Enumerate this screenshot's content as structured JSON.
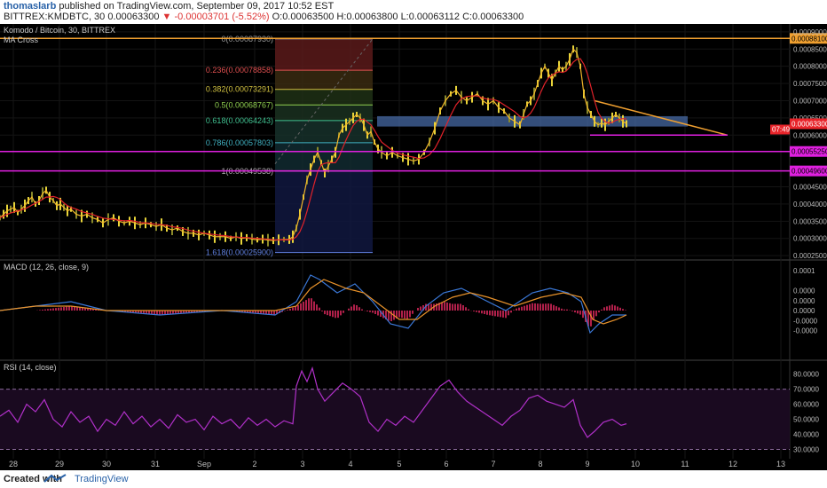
{
  "header": {
    "author": "thomaslarb",
    "published": "published on TradingView.com, September 09, 2017 10:52 EST",
    "symbol": "BITTREX:KMDBTC, 30",
    "last": "0.00063300",
    "change": "-0.00003701 (-5.52%)",
    "open": "O:0.00063500",
    "high": "H:0.00063800",
    "low": "L:0.00063112",
    "close": "C:0.00063300"
  },
  "footer": {
    "created_with": "Created with",
    "brand": "TradingView"
  },
  "colors": {
    "candle_up": "#e8d53a",
    "candle_down": "#8a8a2a",
    "ma_fast": "#f0b52a",
    "ma_slow": "#e0222a",
    "macd": "#3a78d8",
    "signal": "#e8922a",
    "hist": "#b0204a",
    "rsi": "#b030c8",
    "fib_line": "#6a6a6a",
    "magenta": "#e020e0",
    "orange": "#f0a030",
    "zone": "#4a6fae",
    "last_bg": "#e8242a"
  },
  "chart_data": [
    {
      "type": "line",
      "title": "Komodo / Bitcoin, 30, BITTREX",
      "indicator": "MA Cross",
      "x_ticks": [
        "28",
        "29",
        "30",
        "31",
        "Sep",
        "2",
        "3",
        "4",
        "5",
        "6",
        "7",
        "8",
        "9",
        "10",
        "11",
        "12",
        "13"
      ],
      "y_ticks": [
        "0.00090000",
        "0.00085000",
        "0.00080000",
        "0.00075000",
        "0.00070000",
        "0.00065000",
        "0.00060000",
        "0.00045000",
        "0.00040000",
        "0.00035000",
        "0.00030000",
        "0.00025000"
      ],
      "ylim": [
        0.00024,
        0.00091
      ],
      "price_series": [
        [
          0,
          0.00036
        ],
        [
          4,
          0.00037
        ],
        [
          8,
          0.00038
        ],
        [
          12,
          0.000385
        ],
        [
          16,
          0.00039
        ],
        [
          20,
          0.000375
        ],
        [
          24,
          0.000385
        ],
        [
          28,
          0.000395
        ],
        [
          32,
          0.00041
        ],
        [
          36,
          0.00042
        ],
        [
          40,
          0.0004
        ],
        [
          44,
          0.00041
        ],
        [
          48,
          0.00043
        ],
        [
          52,
          0.00044
        ],
        [
          56,
          0.00042
        ],
        [
          60,
          0.00041
        ],
        [
          64,
          0.000395
        ],
        [
          68,
          0.0004
        ],
        [
          72,
          0.00039
        ],
        [
          76,
          0.00038
        ],
        [
          80,
          0.000385
        ],
        [
          86,
          0.00037
        ],
        [
          92,
          0.000365
        ],
        [
          98,
          0.00037
        ],
        [
          104,
          0.00036
        ],
        [
          110,
          0.000355
        ],
        [
          116,
          0.000345
        ],
        [
          122,
          0.000355
        ],
        [
          128,
          0.00036
        ],
        [
          134,
          0.00035
        ],
        [
          140,
          0.000345
        ],
        [
          146,
          0.00035
        ],
        [
          152,
          0.000345
        ],
        [
          158,
          0.00034
        ],
        [
          164,
          0.000345
        ],
        [
          170,
          0.00034
        ],
        [
          176,
          0.000335
        ],
        [
          182,
          0.00034
        ],
        [
          188,
          0.00033
        ],
        [
          194,
          0.000325
        ],
        [
          200,
          0.00033
        ],
        [
          206,
          0.00032
        ],
        [
          212,
          0.000315
        ],
        [
          218,
          0.000315
        ],
        [
          224,
          0.00031
        ],
        [
          230,
          0.000315
        ],
        [
          236,
          0.00031
        ],
        [
          242,
          0.000305
        ],
        [
          248,
          0.000305
        ],
        [
          254,
          0.000305
        ],
        [
          260,
          0.0003
        ],
        [
          266,
          0.000305
        ],
        [
          272,
          0.0003
        ],
        [
          278,
          0.000302
        ],
        [
          284,
          0.000298
        ],
        [
          290,
          0.000296
        ],
        [
          296,
          0.000298
        ],
        [
          302,
          0.000295
        ],
        [
          308,
          0.000294
        ],
        [
          314,
          0.000296
        ],
        [
          320,
          0.000297
        ],
        [
          326,
          0.000297
        ],
        [
          330,
          0.000305
        ],
        [
          334,
          0.00033
        ],
        [
          338,
          0.00037
        ],
        [
          342,
          0.00042
        ],
        [
          346,
          0.00047
        ],
        [
          350,
          0.0005
        ],
        [
          354,
          0.00053
        ],
        [
          358,
          0.00055
        ],
        [
          362,
          0.00052
        ],
        [
          366,
          0.00049
        ],
        [
          370,
          0.00051
        ],
        [
          374,
          0.00053
        ],
        [
          378,
          0.00055
        ],
        [
          382,
          0.0006
        ],
        [
          386,
          0.00062
        ],
        [
          390,
          0.00063
        ],
        [
          394,
          0.00064
        ],
        [
          398,
          0.00065
        ],
        [
          402,
          0.00066
        ],
        [
          406,
          0.00065
        ],
        [
          410,
          0.00063
        ],
        [
          414,
          0.0006
        ],
        [
          418,
          0.00061
        ],
        [
          422,
          0.00058
        ],
        [
          426,
          0.00056
        ],
        [
          430,
          0.00055
        ],
        [
          436,
          0.00054
        ],
        [
          442,
          0.00055
        ],
        [
          448,
          0.00054
        ],
        [
          454,
          0.000535
        ],
        [
          460,
          0.00053
        ],
        [
          466,
          0.000525
        ],
        [
          472,
          0.00053
        ],
        [
          478,
          0.00055
        ],
        [
          484,
          0.00058
        ],
        [
          490,
          0.00062
        ],
        [
          496,
          0.00067
        ],
        [
          502,
          0.0007
        ],
        [
          508,
          0.00072
        ],
        [
          514,
          0.00073
        ],
        [
          520,
          0.00071
        ],
        [
          526,
          0.0007
        ],
        [
          532,
          0.00071
        ],
        [
          538,
          0.00072
        ],
        [
          544,
          0.0007
        ],
        [
          550,
          0.00069
        ],
        [
          556,
          0.0007
        ],
        [
          562,
          0.00068
        ],
        [
          568,
          0.00067
        ],
        [
          574,
          0.00065
        ],
        [
          580,
          0.00064
        ],
        [
          586,
          0.00063
        ],
        [
          590,
          0.00066
        ],
        [
          594,
          0.00069
        ],
        [
          598,
          0.0007
        ],
        [
          602,
          0.00072
        ],
        [
          606,
          0.00075
        ],
        [
          610,
          0.00078
        ],
        [
          614,
          0.0008
        ],
        [
          618,
          0.00078
        ],
        [
          622,
          0.00076
        ],
        [
          626,
          0.00078
        ],
        [
          630,
          0.0008
        ],
        [
          634,
          0.00079
        ],
        [
          638,
          0.0008
        ],
        [
          642,
          0.00082
        ],
        [
          646,
          0.00085
        ],
        [
          650,
          0.00084
        ],
        [
          654,
          0.0008
        ],
        [
          658,
          0.00072
        ],
        [
          662,
          0.00068
        ],
        [
          666,
          0.00066
        ],
        [
          670,
          0.00064
        ],
        [
          674,
          0.00063
        ],
        [
          678,
          0.000635
        ],
        [
          682,
          0.00063
        ],
        [
          686,
          0.00064
        ],
        [
          690,
          0.00065
        ],
        [
          694,
          0.00066
        ],
        [
          698,
          0.00065
        ],
        [
          702,
          0.00064
        ],
        [
          706,
          0.000633
        ]
      ],
      "fib_levels": [
        {
          "label": "0(0.00087930)",
          "value": 0.0008793
        },
        {
          "label": "0.236(0.00078858)",
          "value": 0.00078858
        },
        {
          "label": "0.382(0.00073291)",
          "value": 0.00073291
        },
        {
          "label": "0.5(0.00068767)",
          "value": 0.00068767
        },
        {
          "label": "0.618(0.00064243)",
          "value": 0.00064243
        },
        {
          "label": "0.786(0.00057803)",
          "value": 0.00057803
        },
        {
          "label": "1(0.00049538)",
          "value": 0.00049538
        },
        {
          "label": "1.618(0.00025900)",
          "value": 0.000259
        }
      ],
      "horizontal_lines": [
        {
          "label": "0.00088100",
          "value": 0.000881,
          "color": "#f0a030"
        },
        {
          "label": "0.00055250",
          "value": 0.0005525,
          "color": "#e020e0"
        },
        {
          "label": "0.00049600",
          "value": 0.000496,
          "color": "#e020e0"
        }
      ],
      "last_price_label": "0.00063300",
      "countdown_label": "07:49"
    },
    {
      "type": "line",
      "title": "MACD (12, 26, close, 9)",
      "y_ticks": [
        "0.0001",
        "0.0000",
        "0.0000",
        "0.0000",
        "-0.0000",
        "-0.0000"
      ],
      "ylim": [
        -0.00011,
        0.00011
      ],
      "series": [
        {
          "name": "MACD",
          "values": [
            [
              0,
              0.0
            ],
            [
              40,
              1e-05
            ],
            [
              80,
              2e-05
            ],
            [
              120,
              0.0
            ],
            [
              180,
              -1e-05
            ],
            [
              250,
              0.0
            ],
            [
              310,
              -1e-05
            ],
            [
              334,
              2e-05
            ],
            [
              350,
              8e-05
            ],
            [
              360,
              7e-05
            ],
            [
              380,
              4e-05
            ],
            [
              400,
              6e-05
            ],
            [
              420,
              2e-05
            ],
            [
              440,
              -3e-05
            ],
            [
              460,
              -4e-05
            ],
            [
              480,
              1e-05
            ],
            [
              500,
              4e-05
            ],
            [
              520,
              5e-05
            ],
            [
              540,
              3e-05
            ],
            [
              570,
              0.0
            ],
            [
              600,
              4e-05
            ],
            [
              620,
              5e-05
            ],
            [
              640,
              4e-05
            ],
            [
              655,
              2e-05
            ],
            [
              665,
              -5e-05
            ],
            [
              675,
              -3e-05
            ],
            [
              690,
              -1e-05
            ],
            [
              706,
              -1e-05
            ]
          ]
        },
        {
          "name": "Signal",
          "values": [
            [
              0,
              0.0
            ],
            [
              40,
              1e-05
            ],
            [
              80,
              1e-05
            ],
            [
              120,
              0.0
            ],
            [
              180,
              0.0
            ],
            [
              250,
              0.0
            ],
            [
              310,
              0.0
            ],
            [
              334,
              1e-05
            ],
            [
              350,
              5e-05
            ],
            [
              365,
              7e-05
            ],
            [
              390,
              5e-05
            ],
            [
              410,
              4e-05
            ],
            [
              430,
              1e-05
            ],
            [
              450,
              -2e-05
            ],
            [
              470,
              -2e-05
            ],
            [
              490,
              1e-05
            ],
            [
              510,
              3e-05
            ],
            [
              530,
              4e-05
            ],
            [
              550,
              3e-05
            ],
            [
              580,
              1e-05
            ],
            [
              610,
              3e-05
            ],
            [
              635,
              4e-05
            ],
            [
              655,
              3e-05
            ],
            [
              668,
              -2e-05
            ],
            [
              680,
              -3e-05
            ],
            [
              695,
              -2e-05
            ],
            [
              706,
              -1e-05
            ]
          ]
        }
      ]
    },
    {
      "type": "line",
      "title": "RSI (14, close)",
      "y_ticks": [
        "80.0000",
        "70.0000",
        "60.0000",
        "50.0000",
        "40.0000",
        "30.0000"
      ],
      "ylim": [
        25,
        88
      ],
      "bands": [
        70,
        30
      ],
      "series": [
        {
          "name": "RSI",
          "values": [
            [
              0,
              52
            ],
            [
              10,
              56
            ],
            [
              20,
              48
            ],
            [
              30,
              60
            ],
            [
              40,
              55
            ],
            [
              50,
              63
            ],
            [
              60,
              50
            ],
            [
              70,
              45
            ],
            [
              80,
              55
            ],
            [
              90,
              48
            ],
            [
              100,
              52
            ],
            [
              110,
              42
            ],
            [
              120,
              50
            ],
            [
              130,
              46
            ],
            [
              140,
              55
            ],
            [
              150,
              47
            ],
            [
              160,
              52
            ],
            [
              170,
              45
            ],
            [
              180,
              50
            ],
            [
              190,
              44
            ],
            [
              200,
              53
            ],
            [
              210,
              48
            ],
            [
              220,
              50
            ],
            [
              230,
              43
            ],
            [
              240,
              52
            ],
            [
              250,
              47
            ],
            [
              260,
              50
            ],
            [
              270,
              44
            ],
            [
              280,
              51
            ],
            [
              290,
              46
            ],
            [
              300,
              50
            ],
            [
              310,
              45
            ],
            [
              320,
              49
            ],
            [
              330,
              47
            ],
            [
              334,
              72
            ],
            [
              340,
              82
            ],
            [
              346,
              75
            ],
            [
              352,
              84
            ],
            [
              358,
              70
            ],
            [
              366,
              62
            ],
            [
              376,
              68
            ],
            [
              386,
              74
            ],
            [
              396,
              70
            ],
            [
              406,
              65
            ],
            [
              416,
              48
            ],
            [
              426,
              42
            ],
            [
              436,
              50
            ],
            [
              446,
              46
            ],
            [
              456,
              52
            ],
            [
              466,
              48
            ],
            [
              476,
              56
            ],
            [
              486,
              64
            ],
            [
              496,
              72
            ],
            [
              506,
              76
            ],
            [
              516,
              68
            ],
            [
              526,
              62
            ],
            [
              536,
              58
            ],
            [
              546,
              54
            ],
            [
              556,
              50
            ],
            [
              566,
              46
            ],
            [
              576,
              52
            ],
            [
              586,
              56
            ],
            [
              596,
              64
            ],
            [
              606,
              66
            ],
            [
              616,
              62
            ],
            [
              626,
              60
            ],
            [
              636,
              58
            ],
            [
              646,
              63
            ],
            [
              654,
              46
            ],
            [
              662,
              38
            ],
            [
              670,
              42
            ],
            [
              680,
              48
            ],
            [
              690,
              50
            ],
            [
              700,
              46
            ],
            [
              706,
              47
            ]
          ]
        }
      ]
    }
  ]
}
